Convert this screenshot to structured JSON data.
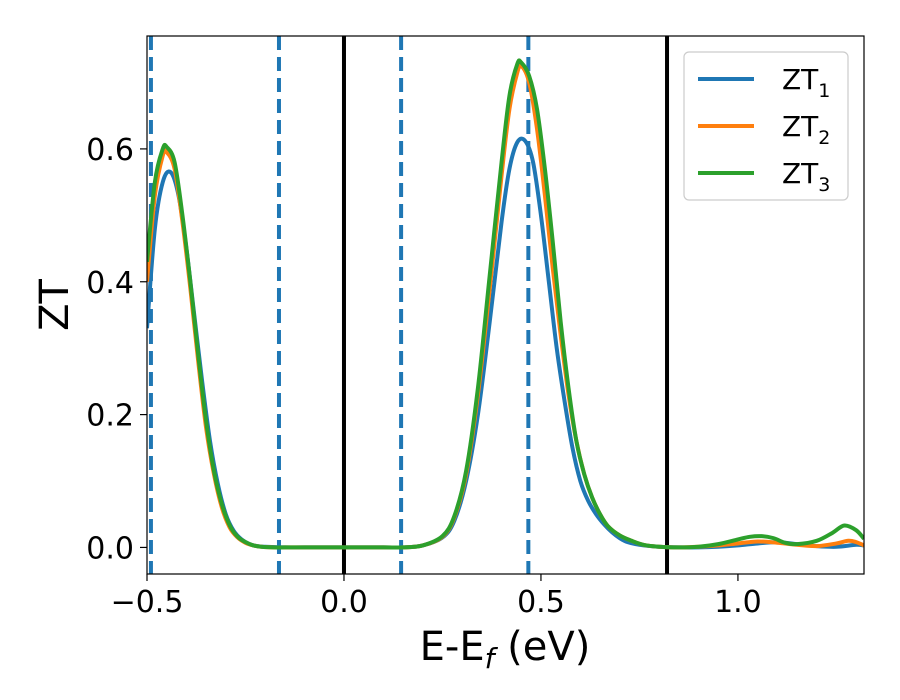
{
  "chart_data": {
    "type": "line",
    "xlabel": {
      "main": "E-E",
      "sub": "f",
      "unit": " (eV)"
    },
    "ylabel": "ZT",
    "xlim": [
      -0.5,
      1.32
    ],
    "ylim": [
      -0.04,
      0.77
    ],
    "xticks": [
      -0.5,
      0.0,
      0.5,
      1.0
    ],
    "xtick_labels": [
      "−0.5",
      "0.0",
      "0.5",
      "1.0"
    ],
    "yticks": [
      0.0,
      0.2,
      0.4,
      0.6
    ],
    "ytick_labels": [
      "0.0",
      "0.2",
      "0.4",
      "0.6"
    ],
    "grid": false,
    "legend_position": "top-right",
    "vlines_solid": [
      0.0,
      0.82
    ],
    "vlines_dashed": [
      -0.49,
      -0.165,
      0.145,
      0.468
    ],
    "vline_solid_color": "#000000",
    "vline_dashed_color": "#1f77b4",
    "series": [
      {
        "name": "ZT",
        "sub": "1",
        "color": "#1f77b4",
        "x": [
          -0.5,
          -0.48,
          -0.46,
          -0.44,
          -0.42,
          -0.4,
          -0.38,
          -0.36,
          -0.34,
          -0.32,
          -0.3,
          -0.28,
          -0.26,
          -0.24,
          -0.22,
          -0.2,
          -0.15,
          -0.1,
          0.0,
          0.1,
          0.15,
          0.2,
          0.25,
          0.28,
          0.31,
          0.34,
          0.37,
          0.4,
          0.42,
          0.44,
          0.46,
          0.48,
          0.5,
          0.52,
          0.54,
          0.56,
          0.58,
          0.6,
          0.62,
          0.64,
          0.66,
          0.68,
          0.7,
          0.72,
          0.75,
          0.8,
          0.85,
          0.9,
          0.95,
          1.0,
          1.05,
          1.1,
          1.15,
          1.2,
          1.25,
          1.3,
          1.32
        ],
        "y": [
          0.33,
          0.48,
          0.55,
          0.565,
          0.53,
          0.45,
          0.35,
          0.25,
          0.16,
          0.095,
          0.05,
          0.025,
          0.012,
          0.005,
          0.002,
          0.001,
          0.0,
          0.0,
          0.0,
          0.0,
          0.0,
          0.003,
          0.015,
          0.04,
          0.1,
          0.2,
          0.34,
          0.49,
          0.57,
          0.61,
          0.612,
          0.58,
          0.5,
          0.4,
          0.3,
          0.22,
          0.15,
          0.1,
          0.07,
          0.05,
          0.035,
          0.023,
          0.014,
          0.008,
          0.004,
          0.001,
          0.0,
          0.0,
          0.001,
          0.003,
          0.006,
          0.008,
          0.005,
          0.002,
          0.001,
          0.004,
          0.003
        ]
      },
      {
        "name": "ZT",
        "sub": "2",
        "color": "#ff7f0e",
        "x": [
          -0.5,
          -0.48,
          -0.46,
          -0.45,
          -0.43,
          -0.41,
          -0.39,
          -0.37,
          -0.35,
          -0.33,
          -0.31,
          -0.29,
          -0.27,
          -0.25,
          -0.23,
          -0.21,
          -0.18,
          -0.15,
          -0.1,
          0.0,
          0.1,
          0.15,
          0.2,
          0.25,
          0.28,
          0.31,
          0.34,
          0.37,
          0.4,
          0.42,
          0.44,
          0.45,
          0.47,
          0.49,
          0.51,
          0.53,
          0.55,
          0.57,
          0.59,
          0.61,
          0.63,
          0.65,
          0.67,
          0.7,
          0.73,
          0.76,
          0.8,
          0.85,
          0.9,
          0.95,
          1.0,
          1.05,
          1.1,
          1.15,
          1.2,
          1.25,
          1.28,
          1.3,
          1.32
        ],
        "y": [
          0.4,
          0.53,
          0.59,
          0.595,
          0.57,
          0.49,
          0.39,
          0.28,
          0.18,
          0.11,
          0.06,
          0.03,
          0.015,
          0.007,
          0.003,
          0.001,
          0.0,
          0.0,
          0.0,
          0.0,
          0.0,
          0.0,
          0.003,
          0.016,
          0.045,
          0.11,
          0.23,
          0.39,
          0.56,
          0.66,
          0.715,
          0.725,
          0.7,
          0.63,
          0.53,
          0.42,
          0.32,
          0.23,
          0.16,
          0.11,
          0.075,
          0.05,
          0.032,
          0.018,
          0.01,
          0.004,
          0.001,
          0.0,
          0.001,
          0.003,
          0.006,
          0.009,
          0.007,
          0.004,
          0.002,
          0.006,
          0.01,
          0.008,
          0.003
        ]
      },
      {
        "name": "ZT",
        "sub": "3",
        "color": "#2ca02c",
        "x": [
          -0.5,
          -0.48,
          -0.46,
          -0.45,
          -0.43,
          -0.41,
          -0.39,
          -0.37,
          -0.35,
          -0.33,
          -0.31,
          -0.29,
          -0.27,
          -0.25,
          -0.23,
          -0.21,
          -0.18,
          -0.15,
          -0.1,
          0.0,
          0.1,
          0.15,
          0.2,
          0.25,
          0.28,
          0.31,
          0.34,
          0.37,
          0.4,
          0.42,
          0.44,
          0.45,
          0.47,
          0.49,
          0.51,
          0.53,
          0.55,
          0.57,
          0.59,
          0.61,
          0.63,
          0.65,
          0.67,
          0.7,
          0.73,
          0.76,
          0.8,
          0.85,
          0.9,
          0.95,
          1.0,
          1.03,
          1.06,
          1.09,
          1.12,
          1.15,
          1.2,
          1.24,
          1.27,
          1.3,
          1.32
        ],
        "y": [
          0.43,
          0.55,
          0.6,
          0.603,
          0.58,
          0.5,
          0.4,
          0.29,
          0.19,
          0.115,
          0.065,
          0.033,
          0.016,
          0.008,
          0.003,
          0.001,
          0.0,
          0.0,
          0.0,
          0.0,
          0.0,
          0.0,
          0.003,
          0.017,
          0.047,
          0.115,
          0.24,
          0.41,
          0.58,
          0.68,
          0.728,
          0.73,
          0.71,
          0.66,
          0.57,
          0.46,
          0.34,
          0.24,
          0.16,
          0.11,
          0.075,
          0.05,
          0.032,
          0.018,
          0.01,
          0.004,
          0.001,
          0.0,
          0.001,
          0.005,
          0.012,
          0.016,
          0.017,
          0.014,
          0.007,
          0.005,
          0.01,
          0.022,
          0.033,
          0.026,
          0.013
        ]
      }
    ]
  }
}
